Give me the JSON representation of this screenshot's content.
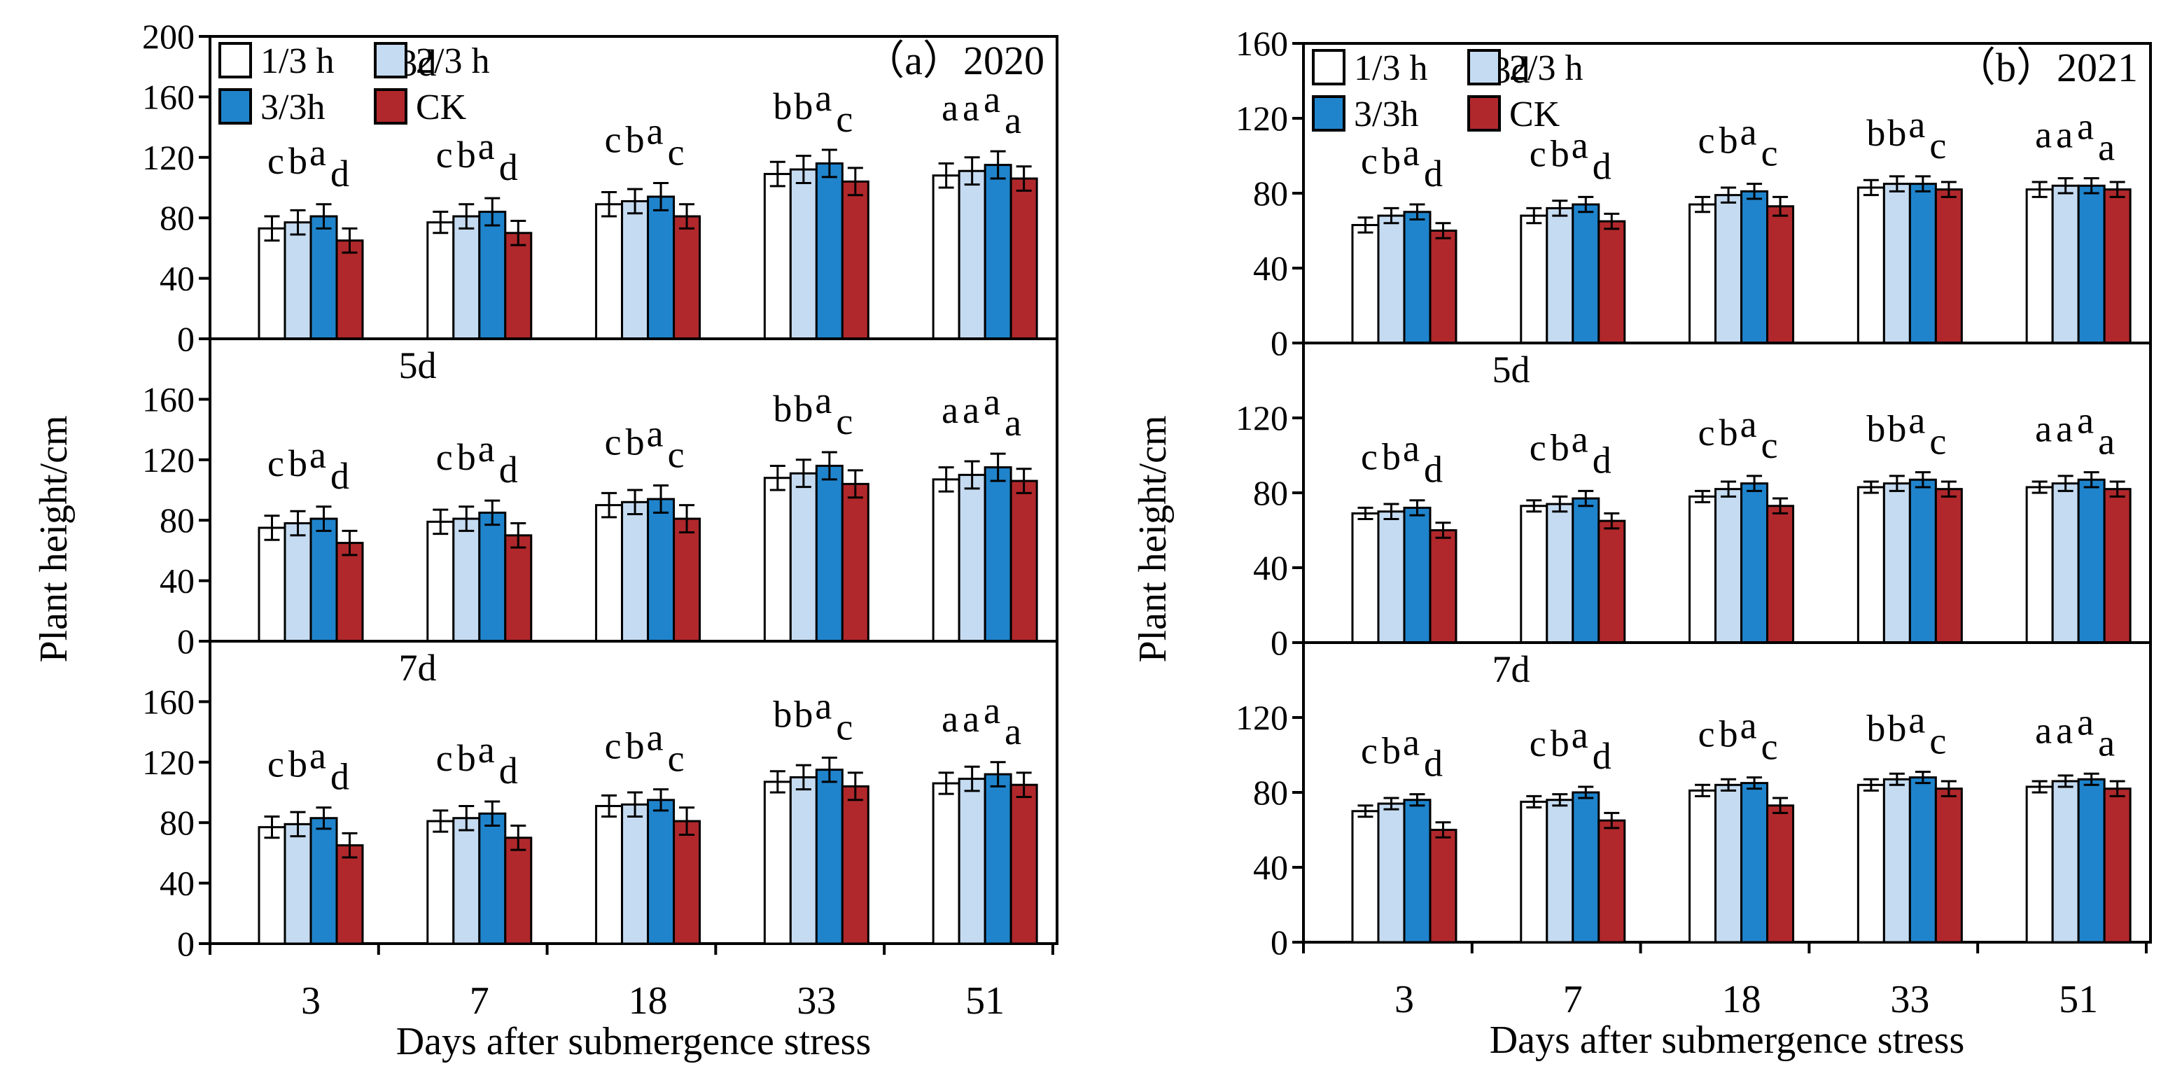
{
  "chart_data": [
    {
      "type": "bar",
      "id": "a",
      "panel_label": "（a）2020",
      "ylabel": "Plant height/cm",
      "xlabel": "Days after submergence stress",
      "categories": [
        "3",
        "7",
        "18",
        "33",
        "51"
      ],
      "legend": [
        {
          "label": "1/3 h",
          "color": "#ffffff"
        },
        {
          "label": "2/3 h",
          "color": "#c5dbf1"
        },
        {
          "label": "3/3h",
          "color": "#1f84cc"
        },
        {
          "label": "CK",
          "color": "#b0282b"
        }
      ],
      "subplots": [
        {
          "title": "3d",
          "ylim": [
            0,
            200
          ],
          "yticks": [
            "0",
            "40",
            "80",
            "120",
            "160",
            "200"
          ],
          "series": [
            {
              "name": "1/3 h",
              "values": [
                73,
                77,
                89,
                109,
                108
              ],
              "errors": [
                8,
                7,
                8,
                8,
                8
              ]
            },
            {
              "name": "2/3 h",
              "values": [
                77,
                81,
                91,
                112,
                111
              ],
              "errors": [
                8,
                8,
                8,
                9,
                9
              ]
            },
            {
              "name": "3/3h",
              "values": [
                81,
                84,
                94,
                116,
                115
              ],
              "errors": [
                8,
                9,
                9,
                9,
                9
              ]
            },
            {
              "name": "CK",
              "values": [
                65,
                70,
                81,
                104,
                106
              ],
              "errors": [
                8,
                8,
                8,
                9,
                8
              ]
            }
          ],
          "letters": [
            [
              "c",
              "b",
              "a",
              "d"
            ],
            [
              "c",
              "b",
              "a",
              "d"
            ],
            [
              "c",
              "b",
              "a",
              "c"
            ],
            [
              "b",
              "b",
              "a",
              "c"
            ],
            [
              "a",
              "a",
              "a",
              "a"
            ]
          ]
        },
        {
          "title": "5d",
          "ylim": [
            0,
            200
          ],
          "yticks": [
            "0",
            "40",
            "80",
            "120",
            "160"
          ],
          "series": [
            {
              "name": "1/3 h",
              "values": [
                75,
                79,
                90,
                108,
                107
              ],
              "errors": [
                8,
                8,
                8,
                8,
                8
              ]
            },
            {
              "name": "2/3 h",
              "values": [
                78,
                81,
                92,
                111,
                110
              ],
              "errors": [
                8,
                8,
                8,
                9,
                9
              ]
            },
            {
              "name": "3/3h",
              "values": [
                81,
                85,
                94,
                116,
                115
              ],
              "errors": [
                8,
                8,
                9,
                9,
                9
              ]
            },
            {
              "name": "CK",
              "values": [
                65,
                70,
                81,
                104,
                106
              ],
              "errors": [
                8,
                8,
                9,
                9,
                8
              ]
            }
          ],
          "letters": [
            [
              "c",
              "b",
              "a",
              "d"
            ],
            [
              "c",
              "b",
              "a",
              "d"
            ],
            [
              "c",
              "b",
              "a",
              "c"
            ],
            [
              "b",
              "b",
              "a",
              "c"
            ],
            [
              "a",
              "a",
              "a",
              "a"
            ]
          ]
        },
        {
          "title": "7d",
          "ylim": [
            0,
            200
          ],
          "yticks": [
            "0",
            "40",
            "80",
            "120",
            "160"
          ],
          "series": [
            {
              "name": "1/3 h",
              "values": [
                77,
                81,
                91,
                107,
                106
              ],
              "errors": [
                7,
                7,
                7,
                7,
                7
              ]
            },
            {
              "name": "2/3 h",
              "values": [
                79,
                83,
                92,
                110,
                109
              ],
              "errors": [
                8,
                8,
                8,
                8,
                8
              ]
            },
            {
              "name": "3/3h",
              "values": [
                83,
                86,
                95,
                115,
                112
              ],
              "errors": [
                7,
                8,
                7,
                8,
                8
              ]
            },
            {
              "name": "CK",
              "values": [
                65,
                70,
                81,
                104,
                105
              ],
              "errors": [
                8,
                8,
                9,
                9,
                8
              ]
            }
          ],
          "letters": [
            [
              "c",
              "b",
              "a",
              "d"
            ],
            [
              "c",
              "b",
              "a",
              "d"
            ],
            [
              "c",
              "b",
              "a",
              "c"
            ],
            [
              "b",
              "b",
              "a",
              "c"
            ],
            [
              "a",
              "a",
              "a",
              "a"
            ]
          ]
        }
      ]
    },
    {
      "type": "bar",
      "id": "b",
      "panel_label": "（b）2021",
      "ylabel": "Plant height/cm",
      "xlabel": "Days after submergence stress",
      "categories": [
        "3",
        "7",
        "18",
        "33",
        "51"
      ],
      "legend": [
        {
          "label": "1/3 h",
          "color": "#ffffff"
        },
        {
          "label": "2/3 h",
          "color": "#c5dbf1"
        },
        {
          "label": "3/3h",
          "color": "#1f84cc"
        },
        {
          "label": "CK",
          "color": "#b0282b"
        }
      ],
      "subplots": [
        {
          "title": "3d",
          "ylim": [
            0,
            160
          ],
          "yticks": [
            "0",
            "40",
            "80",
            "120",
            "160"
          ],
          "series": [
            {
              "name": "1/3 h",
              "values": [
                63,
                68,
                74,
                83,
                82
              ],
              "errors": [
                4,
                4,
                4,
                4,
                4
              ]
            },
            {
              "name": "2/3 h",
              "values": [
                68,
                72,
                79,
                85,
                84
              ],
              "errors": [
                4,
                4,
                4,
                4,
                4
              ]
            },
            {
              "name": "3/3h",
              "values": [
                70,
                74,
                81,
                85,
                84
              ],
              "errors": [
                4,
                4,
                4,
                4,
                4
              ]
            },
            {
              "name": "CK",
              "values": [
                60,
                65,
                73,
                82,
                82
              ],
              "errors": [
                4,
                4,
                5,
                4,
                4
              ]
            }
          ],
          "letters": [
            [
              "c",
              "b",
              "a",
              "d"
            ],
            [
              "c",
              "b",
              "a",
              "d"
            ],
            [
              "c",
              "b",
              "a",
              "c"
            ],
            [
              "b",
              "b",
              "a",
              "c"
            ],
            [
              "a",
              "a",
              "a",
              "a"
            ]
          ]
        },
        {
          "title": "5d",
          "ylim": [
            0,
            160
          ],
          "yticks": [
            "0",
            "40",
            "80",
            "120"
          ],
          "series": [
            {
              "name": "1/3 h",
              "values": [
                69,
                73,
                78,
                83,
                83
              ],
              "errors": [
                3,
                3,
                3,
                3,
                3
              ]
            },
            {
              "name": "2/3 h",
              "values": [
                70,
                74,
                82,
                85,
                85
              ],
              "errors": [
                4,
                4,
                4,
                4,
                4
              ]
            },
            {
              "name": "3/3h",
              "values": [
                72,
                77,
                85,
                87,
                87
              ],
              "errors": [
                4,
                4,
                4,
                4,
                4
              ]
            },
            {
              "name": "CK",
              "values": [
                60,
                65,
                73,
                82,
                82
              ],
              "errors": [
                4,
                4,
                4,
                4,
                4
              ]
            }
          ],
          "letters": [
            [
              "c",
              "b",
              "a",
              "d"
            ],
            [
              "c",
              "b",
              "a",
              "d"
            ],
            [
              "c",
              "b",
              "a",
              "c"
            ],
            [
              "b",
              "b",
              "a",
              "c"
            ],
            [
              "a",
              "a",
              "a",
              "a"
            ]
          ]
        },
        {
          "title": "7d",
          "ylim": [
            0,
            160
          ],
          "yticks": [
            "0",
            "40",
            "80",
            "120"
          ],
          "series": [
            {
              "name": "1/3 h",
              "values": [
                70,
                75,
                81,
                84,
                83
              ],
              "errors": [
                3,
                3,
                3,
                3,
                3
              ]
            },
            {
              "name": "2/3 h",
              "values": [
                74,
                76,
                84,
                87,
                86
              ],
              "errors": [
                3,
                3,
                3,
                3,
                3
              ]
            },
            {
              "name": "3/3h",
              "values": [
                76,
                80,
                85,
                88,
                87
              ],
              "errors": [
                3,
                3,
                3,
                3,
                3
              ]
            },
            {
              "name": "CK",
              "values": [
                60,
                65,
                73,
                82,
                82
              ],
              "errors": [
                4,
                4,
                4,
                4,
                4
              ]
            }
          ],
          "letters": [
            [
              "c",
              "b",
              "a",
              "d"
            ],
            [
              "c",
              "b",
              "a",
              "d"
            ],
            [
              "c",
              "b",
              "a",
              "c"
            ],
            [
              "b",
              "b",
              "a",
              "c"
            ],
            [
              "a",
              "a",
              "a",
              "a"
            ]
          ]
        }
      ]
    }
  ]
}
